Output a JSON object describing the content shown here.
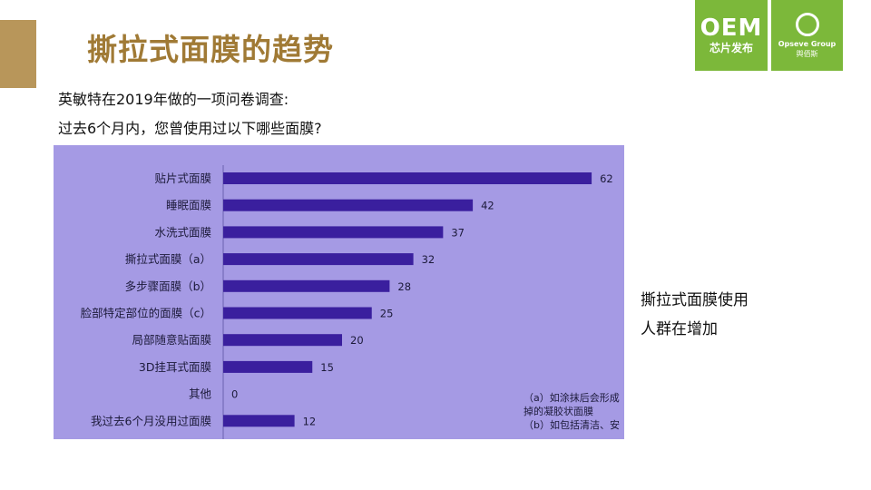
{
  "slide": {
    "title": "撕拉式面膜的趋势",
    "intro_line1": "英敏特在2019年做的一项问卷调查:",
    "intro_line2": "过去6个月内，您曾使用过以下哪些面膜?",
    "side_note_line1": "撕拉式面膜使用",
    "side_note_line2": "人群在增加",
    "accent_color": "#b8965a",
    "title_color": "#a07a35"
  },
  "logos": {
    "oem_big": "OEM",
    "oem_small": "芯片发布",
    "opseve_name": "Opseve Group",
    "opseve_cn": "舆佰斯",
    "color": "#7cb83a"
  },
  "chart_data": {
    "type": "bar",
    "orientation": "horizontal",
    "categories": [
      "贴片式面膜",
      "睡眠面膜",
      "水洗式面膜",
      "撕拉式面膜（a）",
      "多步骤面膜（b）",
      "脸部特定部位的面膜（c）",
      "局部随意贴面膜",
      "3D挂耳式面膜",
      "其他",
      "我过去6个月没用过面膜"
    ],
    "values": [
      62,
      42,
      37,
      32,
      28,
      25,
      20,
      15,
      0,
      12
    ],
    "data_labels": [
      "62",
      "42",
      "37",
      "32",
      "28",
      "25",
      "20",
      "15",
      "0",
      "12"
    ],
    "bar_color": "#3a1f9e",
    "background_color": "#a59ae4",
    "notes": [
      "（a）如涂抹后会形成",
      "掉的凝胶状面膜",
      "（b）如包括清洁、安"
    ]
  }
}
